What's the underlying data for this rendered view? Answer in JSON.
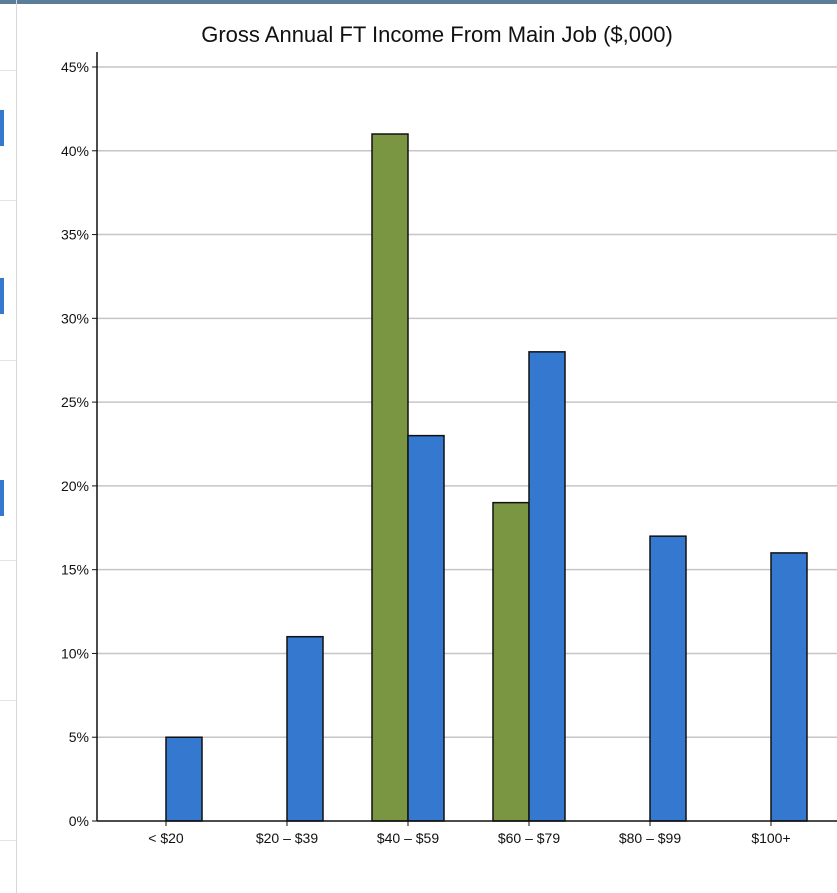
{
  "chart_data": {
    "type": "bar",
    "title": "Gross Annual FT Income From Main Job ($,000)",
    "xlabel": "",
    "ylabel": "",
    "categories": [
      "< $20",
      "$20 – $39",
      "$40 – $59",
      "$60 – $79",
      "$80 – $99",
      "$100+"
    ],
    "series": [
      {
        "values": [
          0,
          0,
          41,
          19,
          0,
          0
        ],
        "color": "#7b9643"
      },
      {
        "values": [
          5,
          11,
          23,
          28,
          17,
          16
        ],
        "color": "#3478cf"
      }
    ],
    "ylim": [
      0,
      45
    ],
    "yticks": [
      "0%",
      "5%",
      "10%",
      "15%",
      "20%",
      "25%",
      "30%",
      "35%",
      "40%",
      "45%"
    ],
    "grid": true
  }
}
